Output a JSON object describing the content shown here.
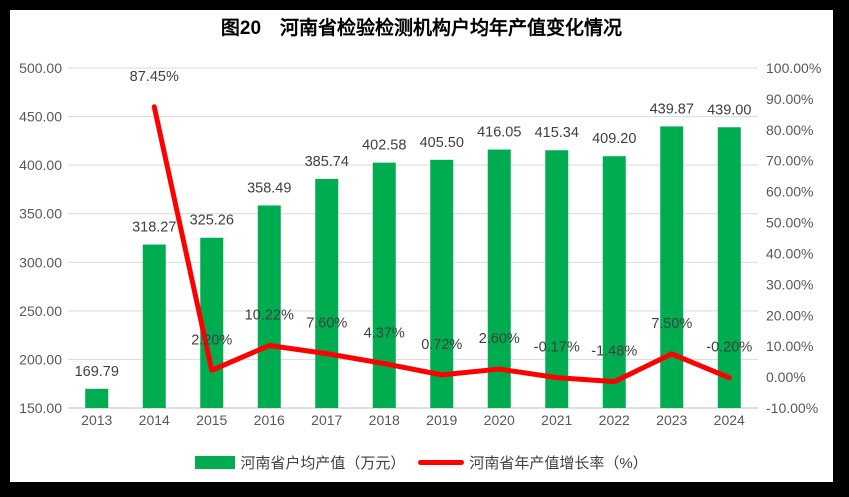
{
  "title": "图20　河南省检验检测机构户均年产值变化情况",
  "colors": {
    "bar": "#00AC50",
    "line": "#FF0000",
    "gridline": "#D9D9D9",
    "axis_line": "#BFBFBF",
    "tick_text": "#595959",
    "data_label_text": "#404040",
    "legend_text": "#404040",
    "title_text": "#000000",
    "background": "#FFFFFF",
    "frame": "#000000"
  },
  "legend": {
    "items": [
      {
        "label": "河南省户均产值（万元）",
        "swatch": "bar"
      },
      {
        "label": "河南省年产值增长率（%）",
        "swatch": "line"
      }
    ]
  },
  "chart_data": {
    "type": "bar+line",
    "categories": [
      "2013",
      "2014",
      "2015",
      "2016",
      "2017",
      "2018",
      "2019",
      "2020",
      "2021",
      "2022",
      "2023",
      "2024"
    ],
    "series": [
      {
        "name": "河南省户均产值（万元）",
        "type": "bar",
        "axis": "left",
        "values": [
          169.79,
          318.27,
          325.26,
          358.49,
          385.74,
          402.58,
          405.5,
          416.05,
          415.34,
          409.2,
          439.87,
          439.0
        ],
        "labels": [
          "169.79",
          "318.27",
          "325.26",
          "358.49",
          "385.74",
          "402.58",
          "405.50",
          "416.05",
          "415.34",
          "409.20",
          "439.87",
          "439.00"
        ]
      },
      {
        "name": "河南省年产值增长率（%）",
        "type": "line",
        "axis": "right",
        "values": [
          null,
          87.45,
          2.2,
          10.22,
          7.6,
          4.37,
          0.72,
          2.6,
          -0.17,
          -1.48,
          7.5,
          -0.2
        ],
        "labels": [
          null,
          "87.45%",
          "2.20%",
          "10.22%",
          "7.60%",
          "4.37%",
          "0.72%",
          "2.60%",
          "-0.17%",
          "-1.48%",
          "7.50%",
          "-0.20%"
        ]
      }
    ],
    "left_axis": {
      "min": 150,
      "max": 500,
      "step": 50,
      "tick_values": [
        500,
        450,
        400,
        350,
        300,
        250,
        200,
        150
      ],
      "tick_labels": [
        "500.00",
        "450.00",
        "400.00",
        "350.00",
        "300.00",
        "250.00",
        "200.00",
        "150.00"
      ]
    },
    "right_axis": {
      "min": -10,
      "max": 100,
      "step": 10,
      "tick_values": [
        100,
        90,
        80,
        70,
        60,
        50,
        40,
        30,
        20,
        10,
        0,
        -10
      ],
      "tick_labels": [
        "100.00%",
        "90.00%",
        "80.00%",
        "70.00%",
        "60.00%",
        "50.00%",
        "40.00%",
        "30.00%",
        "20.00%",
        "10.00%",
        "0.00%",
        "-10.00%"
      ]
    },
    "grid": true,
    "legend_position": "bottom"
  }
}
